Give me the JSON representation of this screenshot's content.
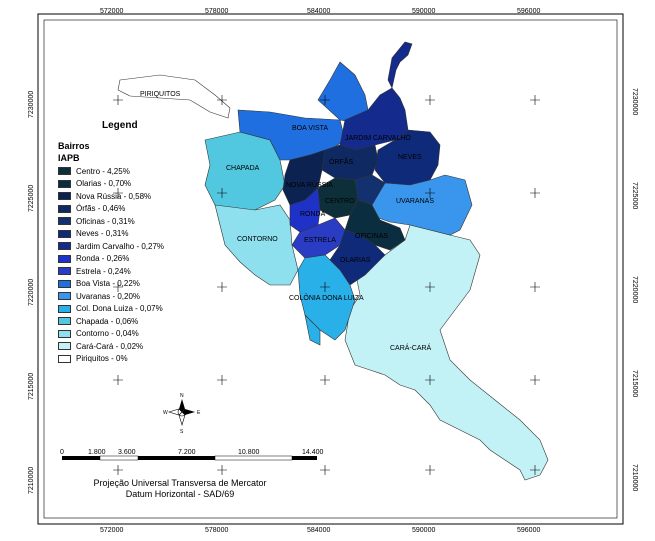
{
  "map": {
    "x_ticks": [
      "572000",
      "578000",
      "584000",
      "590000",
      "596000"
    ],
    "y_ticks": [
      "7230000",
      "7225000",
      "7220000",
      "7215000",
      "7210000"
    ],
    "regions": [
      {
        "name": "PIRIQUITOS",
        "color": "#ffffff"
      },
      {
        "name": "BOA VISTA",
        "color": "#1f6fe0"
      },
      {
        "name": "JARDIM CARVALHO",
        "color": "#142a8c"
      },
      {
        "name": "NEVES",
        "color": "#102a7a"
      },
      {
        "name": "CHAPADA",
        "color": "#52c8e0"
      },
      {
        "name": "ÓRFÃS",
        "color": "#0f2a62"
      },
      {
        "name": "NOVA RÚSSIA",
        "color": "#0c2352"
      },
      {
        "name": "CENTRO",
        "color": "#0d2f3a"
      },
      {
        "name": "UVARANAS",
        "color": "#3a96ec"
      },
      {
        "name": "RONDA",
        "color": "#1f32c8"
      },
      {
        "name": "CONTORNO",
        "color": "#8ee0ef"
      },
      {
        "name": "ESTRELA",
        "color": "#2a3cc4"
      },
      {
        "name": "OFICINAS",
        "color": "#13306f"
      },
      {
        "name": "OLARIAS",
        "color": "#0b2d40"
      },
      {
        "name": "COLÔNIA DONA LUIZA",
        "color": "#2ab0e8"
      },
      {
        "name": "CARÁ-CARÁ",
        "color": "#c2f1f6"
      }
    ]
  },
  "legend": {
    "title": "Legend",
    "subtitle1": "Bairros",
    "subtitle2": "IAPB",
    "items": [
      {
        "label": "Centro - 4,25%",
        "color": "#0d2f3a"
      },
      {
        "label": "Olarias - 0,70%",
        "color": "#0b2d40"
      },
      {
        "label": "Nova Rússia - 0,58%",
        "color": "#0c2352"
      },
      {
        "label": "Órfãs - 0,46%",
        "color": "#0f2a62"
      },
      {
        "label": "Oficinas - 0,31%",
        "color": "#13306f"
      },
      {
        "label": "Neves - 0,31%",
        "color": "#102a7a"
      },
      {
        "label": "Jardim Carvalho - 0,27%",
        "color": "#142a8c"
      },
      {
        "label": "Ronda - 0,26%",
        "color": "#1f32c8"
      },
      {
        "label": "Estrela - 0,24%",
        "color": "#2a3cc4"
      },
      {
        "label": "Boa Vista - 0,22%",
        "color": "#1f6fe0"
      },
      {
        "label": "Uvaranas - 0,20%",
        "color": "#3a96ec"
      },
      {
        "label": "Col. Dona Luiza - 0,07%",
        "color": "#2ab0e8"
      },
      {
        "label": "Chapada - 0,06%",
        "color": "#52c8e0"
      },
      {
        "label": "Contorno - 0,04%",
        "color": "#8ee0ef"
      },
      {
        "label": "Cará-Cará - 0,02%",
        "color": "#c2f1f6"
      },
      {
        "label": "Piriquitos - 0%",
        "color": "#ffffff"
      }
    ]
  },
  "scale": {
    "labels": [
      "0",
      "1.800",
      "3.600",
      "7.200",
      "10.800",
      "14.400"
    ]
  },
  "north_arrow": {
    "n": "N",
    "s": "S",
    "e": "E",
    "w": "W"
  },
  "projection": {
    "line1": "Projeção Universal Transversa de Mercator",
    "line2": "Datum Horizontal - SAD/69"
  }
}
